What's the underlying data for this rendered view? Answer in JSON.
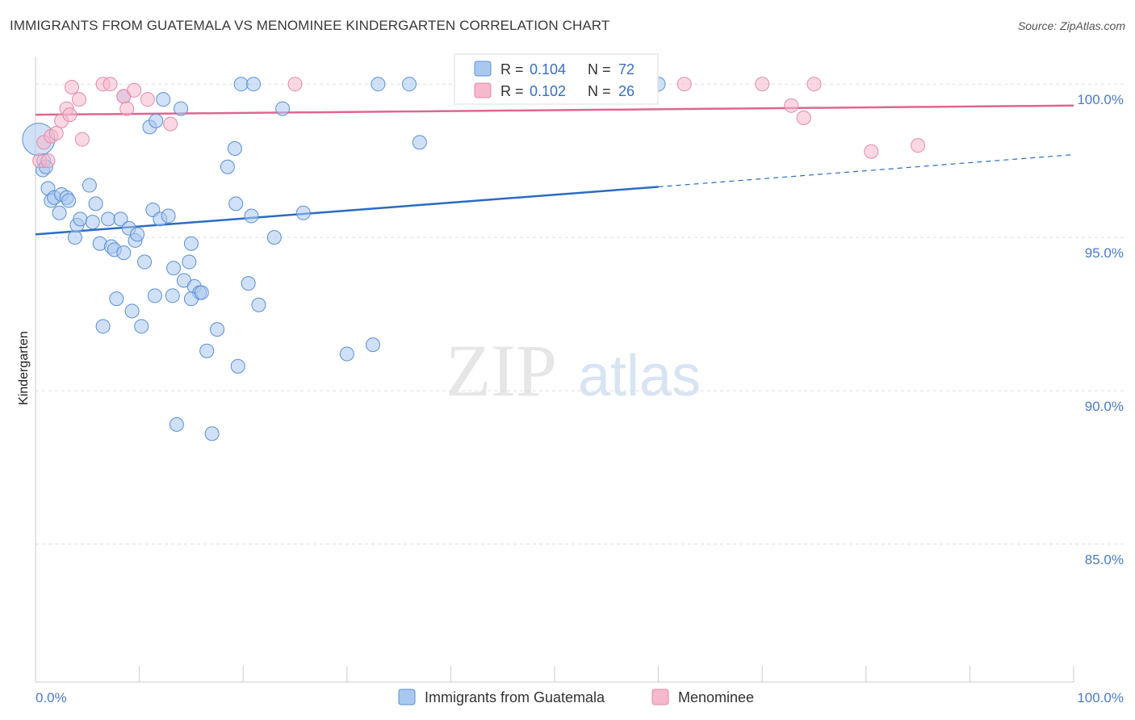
{
  "title": "IMMIGRANTS FROM GUATEMALA VS MENOMINEE KINDERGARTEN CORRELATION CHART",
  "source": "Source: ZipAtlas.com",
  "watermark": {
    "zip": "ZIP",
    "atlas": "atlas"
  },
  "colors": {
    "blue_fill": "#a9c8f0",
    "blue_stroke": "#5b8fd6",
    "blue_line": "#2a6cc4",
    "pink_fill": "#f5b8cc",
    "pink_stroke": "#e48aa8",
    "pink_line": "#e0668f",
    "tick_color": "#4a7bc8",
    "grid": "#dddddd"
  },
  "legend": {
    "blue": {
      "r_label": "R = ",
      "r_value": "0.104",
      "n_label": "N = ",
      "n_value": "72"
    },
    "pink": {
      "r_label": "R = ",
      "r_value": "0.102",
      "n_label": "N = ",
      "n_value": "26"
    }
  },
  "chart_data": {
    "type": "scatter",
    "title": "IMMIGRANTS FROM GUATEMALA VS MENOMINEE KINDERGARTEN CORRELATION CHART",
    "xlabel": "",
    "ylabel": "Kindergarten",
    "xlim": [
      0,
      100
    ],
    "ylim": [
      80.5,
      100.9
    ],
    "x_tick_labels": [
      "0.0%",
      "100.0%"
    ],
    "y_ticks": [
      85,
      90,
      95,
      100
    ],
    "y_tick_labels": [
      "85.0%",
      "90.0%",
      "95.0%",
      "100.0%"
    ],
    "grid": true,
    "legend_position": "top-center",
    "series": [
      {
        "name": "Immigrants from Guatemala",
        "color": "#a9c8f0",
        "trend": {
          "x0": 0,
          "y0": 95.1,
          "x1": 60,
          "y1": 96.65,
          "dashed_to_x": 100,
          "dashed_to_y": 97.7
        },
        "points": [
          [
            0.3,
            98.2
          ],
          [
            0.7,
            97.2
          ],
          [
            0.8,
            97.5
          ],
          [
            1.2,
            96.6
          ],
          [
            1.5,
            96.2
          ],
          [
            1.8,
            96.3
          ],
          [
            2.3,
            95.8
          ],
          [
            2.5,
            96.4
          ],
          [
            3.0,
            96.3
          ],
          [
            3.2,
            96.2
          ],
          [
            3.8,
            95.0
          ],
          [
            4.0,
            95.4
          ],
          [
            4.3,
            95.6
          ],
          [
            5.2,
            96.7
          ],
          [
            5.5,
            95.5
          ],
          [
            5.8,
            96.1
          ],
          [
            6.2,
            94.8
          ],
          [
            6.5,
            92.1
          ],
          [
            7.0,
            95.6
          ],
          [
            7.3,
            94.7
          ],
          [
            7.6,
            94.6
          ],
          [
            7.8,
            93.0
          ],
          [
            8.2,
            95.6
          ],
          [
            8.5,
            94.5
          ],
          [
            9.0,
            95.3
          ],
          [
            9.3,
            92.6
          ],
          [
            9.6,
            94.9
          ],
          [
            9.8,
            95.1
          ],
          [
            10.2,
            92.1
          ],
          [
            10.5,
            94.2
          ],
          [
            11.0,
            98.6
          ],
          [
            11.3,
            95.9
          ],
          [
            11.6,
            98.8
          ],
          [
            12.0,
            95.6
          ],
          [
            12.3,
            99.5
          ],
          [
            12.8,
            95.7
          ],
          [
            13.2,
            93.1
          ],
          [
            13.3,
            94.0
          ],
          [
            13.6,
            88.9
          ],
          [
            14.0,
            99.2
          ],
          [
            14.3,
            93.6
          ],
          [
            14.8,
            94.2
          ],
          [
            15.0,
            94.8
          ],
          [
            15.3,
            93.4
          ],
          [
            15.8,
            93.2
          ],
          [
            16.5,
            91.3
          ],
          [
            17.0,
            88.6
          ],
          [
            17.5,
            92.0
          ],
          [
            18.5,
            97.3
          ],
          [
            19.2,
            97.9
          ],
          [
            19.3,
            96.1
          ],
          [
            19.5,
            90.8
          ],
          [
            19.8,
            100.0
          ],
          [
            20.5,
            93.5
          ],
          [
            20.8,
            95.7
          ],
          [
            21.0,
            100.0
          ],
          [
            21.5,
            92.8
          ],
          [
            23.0,
            95.0
          ],
          [
            23.8,
            99.2
          ],
          [
            25.8,
            95.8
          ],
          [
            30.0,
            91.2
          ],
          [
            32.5,
            91.5
          ],
          [
            33.0,
            100.0
          ],
          [
            36.0,
            100.0
          ],
          [
            37.0,
            98.1
          ],
          [
            42.5,
            100.0
          ],
          [
            60.0,
            100.0
          ],
          [
            8.5,
            99.6
          ],
          [
            11.5,
            93.1
          ],
          [
            15.0,
            93.0
          ],
          [
            16.0,
            93.2
          ],
          [
            1.0,
            97.3
          ]
        ]
      },
      {
        "name": "Menominee",
        "color": "#f5b8cc",
        "trend": {
          "x0": 0,
          "y0": 99.0,
          "x1": 100,
          "y1": 99.3
        },
        "points": [
          [
            0.4,
            97.5
          ],
          [
            0.8,
            98.1
          ],
          [
            1.2,
            97.5
          ],
          [
            1.5,
            98.3
          ],
          [
            2.0,
            98.4
          ],
          [
            2.5,
            98.8
          ],
          [
            3.0,
            99.2
          ],
          [
            3.3,
            99.0
          ],
          [
            3.5,
            99.9
          ],
          [
            4.2,
            99.5
          ],
          [
            4.5,
            98.2
          ],
          [
            6.5,
            100.0
          ],
          [
            7.2,
            100.0
          ],
          [
            8.5,
            99.6
          ],
          [
            8.8,
            99.2
          ],
          [
            9.5,
            99.8
          ],
          [
            10.8,
            99.5
          ],
          [
            13.0,
            98.7
          ],
          [
            25.0,
            100.0
          ],
          [
            62.5,
            100.0
          ],
          [
            70.0,
            100.0
          ],
          [
            72.8,
            99.3
          ],
          [
            74.0,
            98.9
          ],
          [
            75.0,
            100.0
          ],
          [
            80.5,
            97.8
          ],
          [
            85.0,
            98.0
          ]
        ]
      }
    ]
  }
}
